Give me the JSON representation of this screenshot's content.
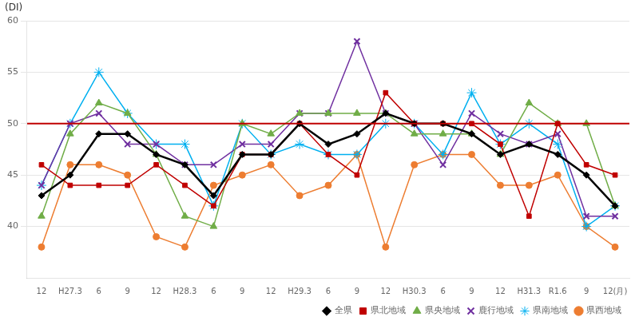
{
  "chart_data": {
    "type": "line",
    "categories": [
      "12",
      "H27.3",
      "6",
      "9",
      "12",
      "H28.3",
      "6",
      "9",
      "12",
      "H29.3",
      "6",
      "9",
      "12",
      "H30.3",
      "6",
      "9",
      "12",
      "H31.3",
      "R1.6",
      "9",
      "12(月)"
    ],
    "series": [
      {
        "name": "全県",
        "color": "#000000",
        "marker": "diamond",
        "values": [
          43,
          45,
          49,
          49,
          47,
          46,
          43,
          47,
          47,
          50,
          48,
          49,
          51,
          50,
          50,
          49,
          47,
          48,
          47,
          45,
          42
        ]
      },
      {
        "name": "県北地域",
        "color": "#c00000",
        "marker": "square",
        "values": [
          46,
          44,
          44,
          44,
          46,
          44,
          42,
          47,
          47,
          50,
          47,
          45,
          53,
          50,
          50,
          50,
          48,
          41,
          50,
          46,
          45
        ]
      },
      {
        "name": "県央地域",
        "color": "#70ad47",
        "marker": "triangle",
        "values": [
          41,
          49,
          52,
          51,
          47,
          41,
          40,
          50,
          49,
          51,
          51,
          51,
          51,
          49,
          49,
          49,
          47,
          52,
          50,
          50,
          42
        ]
      },
      {
        "name": "鹿行地域",
        "color": "#7030a0",
        "marker": "x",
        "values": [
          44,
          50,
          51,
          48,
          48,
          46,
          46,
          48,
          48,
          51,
          51,
          58,
          51,
          50,
          46,
          51,
          49,
          48,
          49,
          41,
          41
        ]
      },
      {
        "name": "県南地域",
        "color": "#00b0f0",
        "marker": "star",
        "values": [
          44,
          50,
          55,
          51,
          48,
          48,
          42,
          50,
          47,
          48,
          47,
          47,
          50,
          50,
          47,
          53,
          48,
          50,
          48,
          40,
          42
        ]
      },
      {
        "name": "県西地域",
        "color": "#ed7d31",
        "marker": "circle",
        "values": [
          38,
          46,
          46,
          45,
          39,
          38,
          44,
          45,
          46,
          43,
          44,
          47,
          38,
          46,
          47,
          47,
          44,
          44,
          45,
          40,
          38
        ]
      }
    ],
    "ylim": [
      35,
      60
    ],
    "yticks": [
      40,
      45,
      50,
      55,
      60
    ],
    "reference_lines": [
      {
        "value": 50,
        "color": "#c00000"
      }
    ],
    "annotations": [
      {
        "text": "(DI)"
      }
    ],
    "grid": true,
    "legend": "lower right"
  }
}
